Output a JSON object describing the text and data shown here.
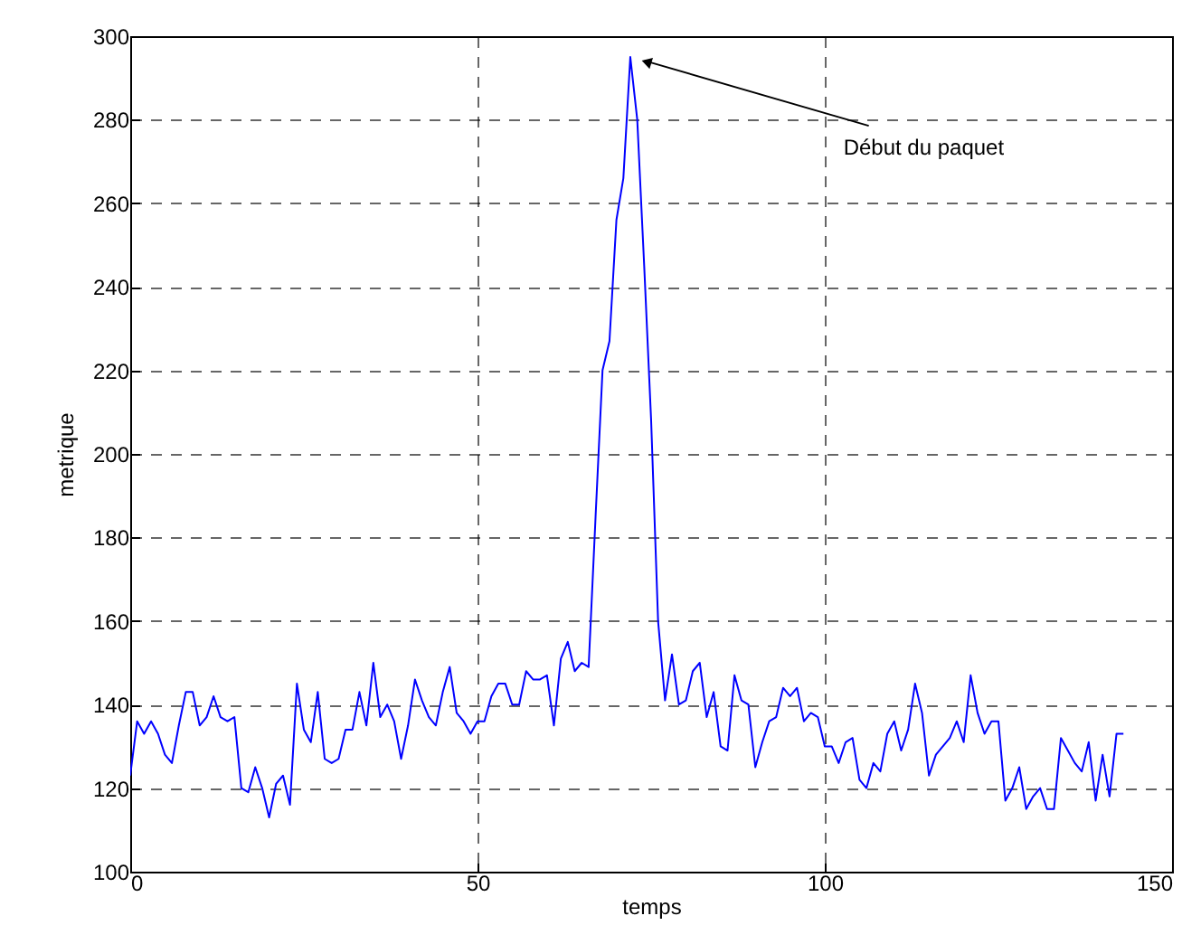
{
  "chart_data": {
    "type": "line",
    "xlabel": "temps",
    "ylabel": "metrique",
    "xlim": [
      0,
      150
    ],
    "ylim": [
      100,
      300
    ],
    "xticks": [
      0,
      50,
      100,
      150
    ],
    "yticks": [
      100,
      120,
      140,
      160,
      180,
      200,
      220,
      240,
      260,
      280,
      300
    ],
    "grid": true,
    "line_style": "solid",
    "annotations": [
      {
        "text": "Début du paquet",
        "x": 73,
        "y": 295
      }
    ],
    "series": [
      {
        "color": "#0000ff",
        "x": [
          0,
          1,
          2,
          3,
          4,
          5,
          6,
          7,
          8,
          9,
          10,
          11,
          12,
          13,
          14,
          15,
          16,
          17,
          18,
          19,
          20,
          21,
          22,
          23,
          24,
          25,
          26,
          27,
          28,
          29,
          30,
          31,
          32,
          33,
          34,
          35,
          36,
          37,
          38,
          39,
          40,
          41,
          42,
          43,
          44,
          45,
          46,
          47,
          48,
          49,
          50,
          51,
          52,
          53,
          54,
          55,
          56,
          57,
          58,
          59,
          60,
          61,
          62,
          63,
          64,
          65,
          66,
          67,
          68,
          69,
          70,
          71,
          72,
          73,
          74,
          75,
          76,
          77,
          78,
          79,
          80,
          81,
          82,
          83,
          84,
          85,
          86,
          87,
          88,
          89,
          90,
          91,
          92,
          93,
          94,
          95,
          96,
          97,
          98,
          99,
          100,
          101,
          102,
          103,
          104,
          105,
          106,
          107,
          108,
          109,
          110,
          111,
          112,
          113,
          114,
          115,
          116,
          117,
          118,
          119,
          120,
          121,
          122,
          123,
          124,
          125,
          126,
          127,
          128,
          129,
          130,
          131,
          132,
          133,
          134,
          135,
          136,
          137,
          138,
          139,
          140,
          141,
          142,
          143
        ],
        "values": [
          123,
          136,
          133,
          136,
          133,
          128,
          126,
          135,
          143,
          143,
          135,
          137,
          142,
          137,
          136,
          137,
          120,
          119,
          125,
          120,
          113,
          121,
          123,
          116,
          145,
          134,
          131,
          143,
          127,
          126,
          127,
          134,
          134,
          143,
          135,
          150,
          137,
          140,
          136,
          127,
          135,
          146,
          141,
          137,
          135,
          143,
          149,
          138,
          136,
          133,
          136,
          136,
          142,
          145,
          145,
          140,
          140,
          148,
          146,
          146,
          147,
          135,
          151,
          155,
          148,
          150,
          149,
          185,
          220,
          227,
          256,
          266,
          295,
          280,
          245,
          208,
          160,
          141,
          152,
          140,
          141,
          148,
          150,
          137,
          143,
          130,
          129,
          147,
          141,
          140,
          125,
          131,
          136,
          137,
          144,
          142,
          144,
          136,
          138,
          137,
          130,
          130,
          126,
          131,
          132,
          122,
          120,
          126,
          124,
          133,
          136,
          129,
          134,
          145,
          138,
          123,
          128,
          130,
          132,
          136,
          131,
          147,
          138,
          133,
          136,
          136,
          117,
          120,
          125,
          115,
          118,
          120,
          115,
          115,
          132,
          129,
          126,
          124,
          131,
          117,
          128,
          118,
          133,
          133
        ]
      }
    ]
  }
}
